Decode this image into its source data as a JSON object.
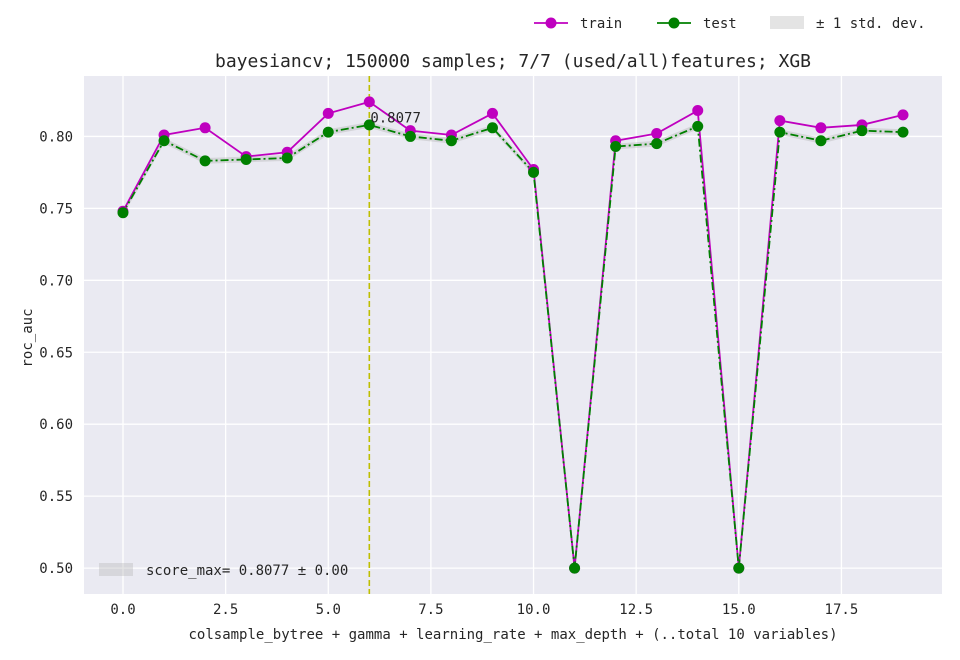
{
  "chart_data": {
    "type": "line",
    "title": "bayesiancv; 150000 samples; 7/7 (used/all)features; XGB",
    "xlabel": "colsample_bytree + gamma + learning_rate + max_depth + (..total 10 variables)",
    "ylabel": "roc_auc",
    "xlim": [
      -0.95,
      19.95
    ],
    "ylim": [
      0.482,
      0.842
    ],
    "xticks": [
      0.0,
      2.5,
      5.0,
      7.5,
      10.0,
      12.5,
      15.0,
      17.5
    ],
    "xtick_labels": [
      "0.0",
      "2.5",
      "5.0",
      "7.5",
      "10.0",
      "12.5",
      "15.0",
      "17.5"
    ],
    "yticks": [
      0.5,
      0.55,
      0.6,
      0.65,
      0.7,
      0.75,
      0.8
    ],
    "ytick_labels": [
      "0.50",
      "0.55",
      "0.60",
      "0.65",
      "0.70",
      "0.75",
      "0.80"
    ],
    "grid": true,
    "background": "#eaeaf2",
    "legend_placement": "top-right, above plot",
    "x": [
      0,
      1,
      2,
      3,
      4,
      5,
      6,
      7,
      8,
      9,
      10,
      11,
      12,
      13,
      14,
      15,
      16,
      17,
      18,
      19
    ],
    "series": [
      {
        "name": "train",
        "color": "#bf00bf",
        "linestyle": "solid",
        "marker": "circle",
        "values": [
          0.748,
          0.801,
          0.806,
          0.786,
          0.789,
          0.816,
          0.824,
          0.804,
          0.801,
          0.816,
          0.777,
          0.5,
          0.797,
          0.802,
          0.818,
          0.5,
          0.811,
          0.806,
          0.808,
          0.815
        ]
      },
      {
        "name": "test",
        "color": "#008000",
        "linestyle": "dashdot",
        "marker": "circle",
        "values": [
          0.747,
          0.797,
          0.783,
          0.784,
          0.785,
          0.803,
          0.808,
          0.8,
          0.797,
          0.806,
          0.775,
          0.5,
          0.793,
          0.795,
          0.807,
          0.5,
          0.803,
          0.797,
          0.804,
          0.803
        ]
      }
    ],
    "std_band": {
      "label": "± 1 std. dev.",
      "color": "#b3b3b3",
      "half_width": 0.002
    },
    "best": {
      "x": 6,
      "value": 0.8077,
      "annotation": "0.8077",
      "line_color": "#bfbf00",
      "legend_label": "score_max= 0.8077 ± 0.00"
    }
  }
}
